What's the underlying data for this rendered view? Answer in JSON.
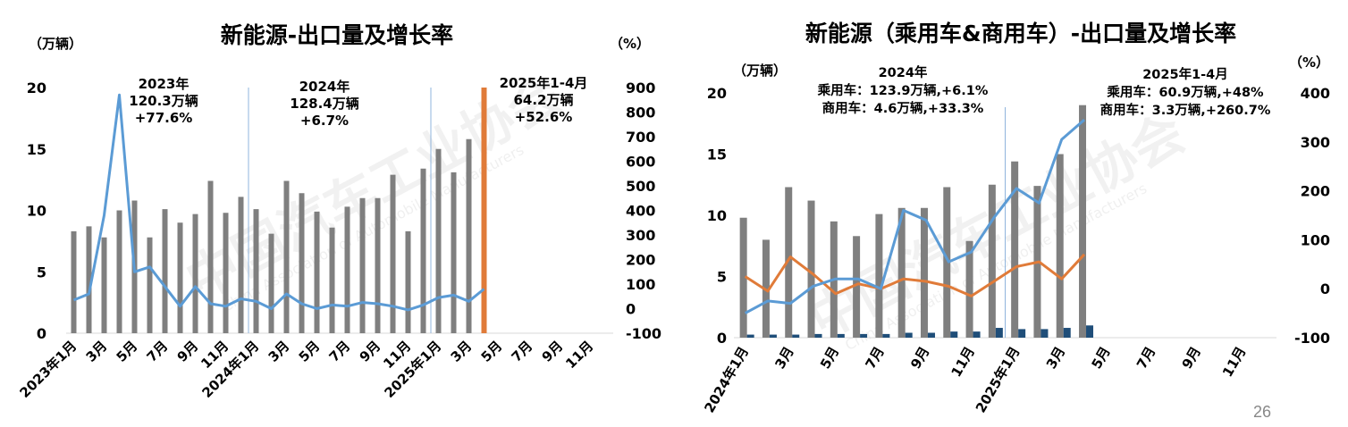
{
  "page_number": "26",
  "watermark": {
    "cn": "中国汽车工业协会",
    "en": "China Association of Automobile Manufacturers"
  },
  "chart_data": [
    {
      "type": "bar",
      "title": "新能源-出口量及增长率",
      "left_unit": "（万辆）",
      "right_unit": "（%）",
      "ylim": [
        0,
        20
      ],
      "y_ticks": [
        "0",
        "5",
        "10",
        "15",
        "20"
      ],
      "y2lim": [
        -100,
        900
      ],
      "y2_ticks": [
        "-100",
        "0",
        "100",
        "200",
        "300",
        "400",
        "500",
        "600",
        "700",
        "800",
        "900"
      ],
      "x_labels": [
        "2023年1月",
        "3月",
        "5月",
        "7月",
        "9月",
        "11月",
        "2024年1月",
        "3月",
        "5月",
        "7月",
        "9月",
        "11月",
        "2025年1月",
        "3月",
        "5月",
        "7月",
        "9月",
        "11月"
      ],
      "colors": {
        "bar": "#7f7f7f",
        "bar_highlight": "#e07b39",
        "line": "#5b9bd5"
      },
      "series": [
        {
          "kind": "bar",
          "values": [
            8.3,
            8.7,
            7.8,
            10.0,
            10.8,
            7.8,
            10.1,
            9.0,
            9.7,
            12.4,
            9.8,
            11.1,
            10.1,
            8.1,
            12.4,
            11.4,
            9.9,
            8.6,
            10.3,
            11.0,
            11.0,
            12.9,
            8.3,
            13.4,
            15.0,
            13.1,
            15.8,
            20.0
          ]
        },
        {
          "kind": "line",
          "values": [
            35,
            60,
            380,
            870,
            150,
            170,
            90,
            10,
            90,
            20,
            10,
            40,
            30,
            0,
            60,
            20,
            0,
            15,
            10,
            25,
            20,
            10,
            -5,
            15,
            45,
            55,
            30,
            80
          ]
        }
      ],
      "annotations": [
        {
          "lines": [
            "2023年",
            "120.3万辆",
            "+77.6%"
          ]
        },
        {
          "lines": [
            "2024年",
            "128.4万辆",
            "+6.7%"
          ]
        },
        {
          "lines": [
            "2025年1-4月",
            "64.2万辆",
            "+52.6%"
          ]
        }
      ]
    },
    {
      "type": "bar",
      "title": "新能源（乘用车&商用车）-出口量及增长率",
      "left_unit": "（万辆）",
      "right_unit": "（%）",
      "ylim": [
        0,
        20
      ],
      "y_ticks": [
        "0",
        "5",
        "10",
        "15",
        "20"
      ],
      "y2lim": [
        -100,
        400
      ],
      "y2_ticks": [
        "-100",
        "0",
        "100",
        "200",
        "300",
        "400"
      ],
      "x_labels": [
        "2024年1月",
        "3月",
        "5月",
        "7月",
        "9月",
        "11月",
        "2025年1月",
        "3月",
        "5月",
        "7月",
        "9月",
        "11月"
      ],
      "colors": {
        "bar_passenger": "#7f7f7f",
        "bar_commercial": "#1f4e79",
        "line_passenger": "#5b9bd5",
        "line_commercial": "#e07b39"
      },
      "series": [
        {
          "kind": "bar",
          "group": "passenger",
          "values": [
            9.8,
            8.0,
            12.3,
            11.2,
            9.5,
            8.3,
            10.1,
            10.6,
            10.6,
            12.3,
            7.9,
            12.5,
            14.4,
            12.4,
            15.0,
            19.0
          ]
        },
        {
          "kind": "bar",
          "group": "commercial",
          "values": [
            0.25,
            0.25,
            0.25,
            0.3,
            0.3,
            0.3,
            0.3,
            0.4,
            0.4,
            0.5,
            0.5,
            0.8,
            0.7,
            0.7,
            0.8,
            1.0
          ]
        },
        {
          "kind": "line",
          "group": "passenger",
          "values": [
            -50,
            -25,
            -30,
            5,
            20,
            20,
            0,
            160,
            140,
            55,
            75,
            145,
            205,
            175,
            305,
            345
          ]
        },
        {
          "kind": "line",
          "group": "commercial",
          "values": [
            25,
            -5,
            65,
            30,
            -10,
            10,
            0,
            20,
            15,
            5,
            -15,
            15,
            45,
            55,
            20,
            70
          ]
        }
      ],
      "annotations": [
        {
          "lines": [
            "2024年",
            "乘用车：123.9万辆,+6.1%",
            "商用车：4.6万辆,+33.3%"
          ]
        },
        {
          "lines": [
            "2025年1-4月",
            "乘用车：60.9万辆,+48%",
            "商用车：3.3万辆,+260.7%"
          ]
        }
      ]
    }
  ]
}
